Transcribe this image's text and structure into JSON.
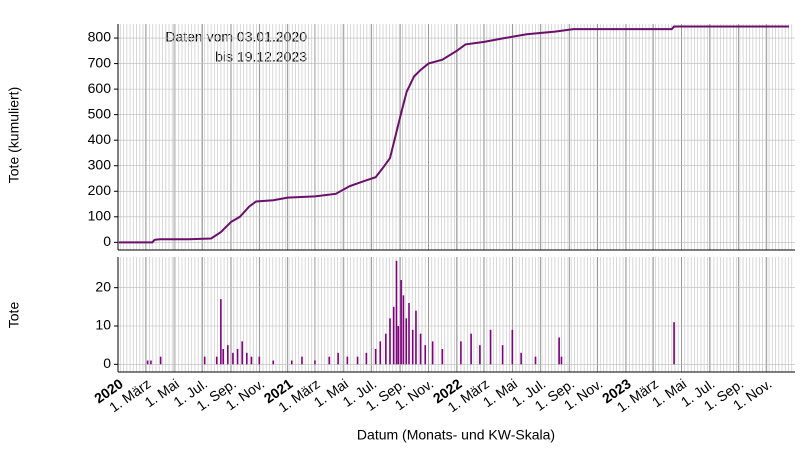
{
  "chart_data": [
    {
      "type": "line",
      "ylabel": "Tote (kumuliert)",
      "annotation": [
        "Daten vom 03.01.2020",
        "bis 19.12.2023"
      ],
      "color": "#6b0f6b",
      "xlim": [
        "2020-01-01",
        "2024-01-01"
      ],
      "ylim": [
        -30,
        855
      ],
      "yticks": [
        0,
        100,
        200,
        300,
        400,
        500,
        600,
        700,
        800
      ],
      "grid": true,
      "x": [
        "2020-01-03",
        "2020-03-15",
        "2020-03-20",
        "2020-04-01",
        "2020-06-01",
        "2020-07-20",
        "2020-08-10",
        "2020-09-01",
        "2020-09-20",
        "2020-10-10",
        "2020-10-25",
        "2020-12-01",
        "2021-01-01",
        "2021-03-01",
        "2021-04-15",
        "2021-05-15",
        "2021-06-15",
        "2021-07-10",
        "2021-07-25",
        "2021-08-10",
        "2021-08-25",
        "2021-09-05",
        "2021-09-15",
        "2021-10-01",
        "2021-10-15",
        "2021-11-01",
        "2021-12-01",
        "2022-01-01",
        "2022-01-20",
        "2022-03-01",
        "2022-04-15",
        "2022-06-01",
        "2022-08-01",
        "2022-09-10",
        "2023-04-10",
        "2023-04-15",
        "2023-12-19"
      ],
      "values": [
        0,
        0,
        10,
        12,
        12,
        15,
        40,
        80,
        100,
        140,
        160,
        165,
        175,
        180,
        190,
        220,
        240,
        255,
        290,
        330,
        440,
        520,
        590,
        650,
        675,
        700,
        715,
        750,
        775,
        785,
        800,
        815,
        825,
        835,
        835,
        845,
        845
      ]
    },
    {
      "type": "bar",
      "ylabel": "Tote",
      "xlabel": "Datum (Monats- und KW-Skala)",
      "color": "#800080",
      "xlim": [
        "2020-01-01",
        "2024-01-01"
      ],
      "ylim": [
        -2,
        28
      ],
      "yticks": [
        0,
        10,
        20
      ],
      "grid": true,
      "xticks": [
        {
          "value": "2020-01-01",
          "label": "2020"
        },
        {
          "value": "2020-03-01",
          "label": "1. März"
        },
        {
          "value": "2020-05-01",
          "label": "1. Mai"
        },
        {
          "value": "2020-07-01",
          "label": "1. Jul."
        },
        {
          "value": "2020-09-01",
          "label": "1. Sep."
        },
        {
          "value": "2020-11-01",
          "label": "1. Nov."
        },
        {
          "value": "2021-01-01",
          "label": "2021"
        },
        {
          "value": "2021-03-01",
          "label": "1. März"
        },
        {
          "value": "2021-05-01",
          "label": "1. Mai"
        },
        {
          "value": "2021-07-01",
          "label": "1. Jul."
        },
        {
          "value": "2021-09-01",
          "label": "1. Sep."
        },
        {
          "value": "2021-11-01",
          "label": "1. Nov."
        },
        {
          "value": "2022-01-01",
          "label": "2022"
        },
        {
          "value": "2022-03-01",
          "label": "1. März"
        },
        {
          "value": "2022-05-01",
          "label": "1. Mai"
        },
        {
          "value": "2022-07-01",
          "label": "1. Jul."
        },
        {
          "value": "2022-09-01",
          "label": "1. Sep."
        },
        {
          "value": "2022-11-01",
          "label": "1. Nov."
        },
        {
          "value": "2023-01-01",
          "label": "2023"
        },
        {
          "value": "2023-03-01",
          "label": "1. März"
        },
        {
          "value": "2023-05-01",
          "label": "1. Mai"
        },
        {
          "value": "2023-07-01",
          "label": "1. Jul."
        },
        {
          "value": "2023-09-01",
          "label": "1. Sep."
        },
        {
          "value": "2023-11-01",
          "label": "1. Nov."
        }
      ],
      "x": [
        "2020-03-05",
        "2020-03-12",
        "2020-04-02",
        "2020-07-06",
        "2020-08-01",
        "2020-08-10",
        "2020-08-15",
        "2020-08-25",
        "2020-09-05",
        "2020-09-15",
        "2020-09-25",
        "2020-10-05",
        "2020-10-15",
        "2020-11-01",
        "2020-12-01",
        "2021-01-10",
        "2021-02-01",
        "2021-03-01",
        "2021-04-01",
        "2021-04-20",
        "2021-05-10",
        "2021-06-01",
        "2021-06-20",
        "2021-07-10",
        "2021-07-20",
        "2021-08-01",
        "2021-08-10",
        "2021-08-18",
        "2021-08-24",
        "2021-08-28",
        "2021-09-03",
        "2021-09-08",
        "2021-09-14",
        "2021-09-20",
        "2021-09-28",
        "2021-10-05",
        "2021-10-15",
        "2021-10-25",
        "2021-11-10",
        "2021-12-01",
        "2022-01-10",
        "2022-02-01",
        "2022-02-20",
        "2022-03-15",
        "2022-04-10",
        "2022-05-01",
        "2022-05-20",
        "2022-06-20",
        "2022-08-10",
        "2022-08-15",
        "2023-04-15"
      ],
      "values": [
        1,
        1,
        2,
        2,
        2,
        17,
        4,
        5,
        3,
        4,
        6,
        3,
        2,
        2,
        1,
        1,
        2,
        1,
        2,
        3,
        2,
        2,
        3,
        4,
        6,
        8,
        12,
        15,
        27,
        10,
        22,
        18,
        12,
        16,
        9,
        14,
        8,
        5,
        6,
        4,
        6,
        8,
        5,
        9,
        5,
        9,
        3,
        2,
        7,
        2,
        11
      ]
    }
  ]
}
